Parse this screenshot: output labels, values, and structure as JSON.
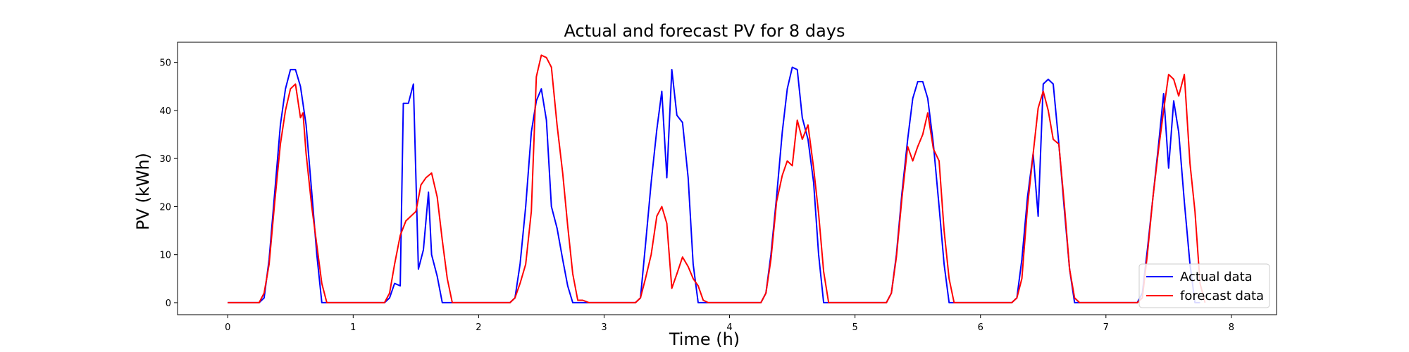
{
  "chart_data": {
    "type": "line",
    "title": "Actual and forecast PV for 8 days",
    "xlabel": "Time (h)",
    "ylabel": "PV (kWh)",
    "xlim": [
      -0.4,
      8.36
    ],
    "ylim": [
      -2.5,
      54.2
    ],
    "xticks": [
      0,
      1,
      2,
      3,
      4,
      5,
      6,
      7,
      8
    ],
    "yticks": [
      0,
      10,
      20,
      30,
      40,
      50
    ],
    "grid": false,
    "legend_position": "lower-right",
    "series": [
      {
        "name": "Actual data",
        "color": "#0000ff",
        "points": [
          [
            0.0,
            0
          ],
          [
            0.25,
            0
          ],
          [
            0.29,
            1
          ],
          [
            0.33,
            9
          ],
          [
            0.375,
            23
          ],
          [
            0.42,
            37
          ],
          [
            0.46,
            44.5
          ],
          [
            0.5,
            48.5
          ],
          [
            0.54,
            48.5
          ],
          [
            0.58,
            45
          ],
          [
            0.625,
            37
          ],
          [
            0.67,
            23
          ],
          [
            0.71,
            10
          ],
          [
            0.75,
            0
          ],
          [
            1.0,
            0
          ],
          [
            1.25,
            0
          ],
          [
            1.29,
            1
          ],
          [
            1.33,
            4
          ],
          [
            1.375,
            3.5
          ],
          [
            1.4,
            41.5
          ],
          [
            1.44,
            41.5
          ],
          [
            1.48,
            45.5
          ],
          [
            1.52,
            7
          ],
          [
            1.56,
            11
          ],
          [
            1.6,
            23
          ],
          [
            1.625,
            10
          ],
          [
            1.67,
            5.5
          ],
          [
            1.71,
            0
          ],
          [
            2.0,
            0
          ],
          [
            2.25,
            0
          ],
          [
            2.29,
            1
          ],
          [
            2.33,
            8
          ],
          [
            2.375,
            20
          ],
          [
            2.42,
            35.5
          ],
          [
            2.46,
            42
          ],
          [
            2.5,
            44.5
          ],
          [
            2.54,
            38
          ],
          [
            2.58,
            20
          ],
          [
            2.625,
            15.5
          ],
          [
            2.67,
            9
          ],
          [
            2.71,
            3.5
          ],
          [
            2.75,
            0
          ],
          [
            3.0,
            0
          ],
          [
            3.25,
            0
          ],
          [
            3.29,
            1
          ],
          [
            3.33,
            12
          ],
          [
            3.375,
            25
          ],
          [
            3.42,
            36
          ],
          [
            3.46,
            44
          ],
          [
            3.5,
            26
          ],
          [
            3.54,
            48.5
          ],
          [
            3.58,
            39
          ],
          [
            3.625,
            37.5
          ],
          [
            3.67,
            26
          ],
          [
            3.71,
            8
          ],
          [
            3.75,
            0
          ],
          [
            4.0,
            0
          ],
          [
            4.25,
            0
          ],
          [
            4.29,
            2
          ],
          [
            4.33,
            10
          ],
          [
            4.375,
            22
          ],
          [
            4.42,
            35.5
          ],
          [
            4.46,
            44.5
          ],
          [
            4.5,
            49
          ],
          [
            4.54,
            48.5
          ],
          [
            4.58,
            38.5
          ],
          [
            4.625,
            34
          ],
          [
            4.67,
            25
          ],
          [
            4.71,
            10
          ],
          [
            4.75,
            0
          ],
          [
            5.0,
            0
          ],
          [
            5.25,
            0
          ],
          [
            5.29,
            2
          ],
          [
            5.33,
            10
          ],
          [
            5.375,
            23
          ],
          [
            5.42,
            34
          ],
          [
            5.46,
            42.5
          ],
          [
            5.5,
            46
          ],
          [
            5.54,
            46
          ],
          [
            5.58,
            42.5
          ],
          [
            5.625,
            33
          ],
          [
            5.67,
            20
          ],
          [
            5.71,
            8
          ],
          [
            5.75,
            0
          ],
          [
            6.0,
            0
          ],
          [
            6.25,
            0
          ],
          [
            6.29,
            1
          ],
          [
            6.33,
            9
          ],
          [
            6.375,
            22
          ],
          [
            6.42,
            31
          ],
          [
            6.46,
            18
          ],
          [
            6.5,
            45.5
          ],
          [
            6.54,
            46.5
          ],
          [
            6.58,
            45.5
          ],
          [
            6.625,
            33
          ],
          [
            6.67,
            19
          ],
          [
            6.71,
            7
          ],
          [
            6.75,
            0
          ],
          [
            7.0,
            0
          ],
          [
            7.25,
            0
          ],
          [
            7.29,
            2
          ],
          [
            7.33,
            11
          ],
          [
            7.375,
            22
          ],
          [
            7.42,
            33
          ],
          [
            7.46,
            43.5
          ],
          [
            7.5,
            28
          ],
          [
            7.54,
            42
          ],
          [
            7.58,
            35.5
          ],
          [
            7.625,
            21
          ],
          [
            7.67,
            8
          ],
          [
            7.71,
            0
          ],
          [
            7.75,
            0
          ]
        ]
      },
      {
        "name": "forecast data",
        "color": "#ff0000",
        "points": [
          [
            0.0,
            0
          ],
          [
            0.25,
            0
          ],
          [
            0.29,
            2
          ],
          [
            0.33,
            8
          ],
          [
            0.375,
            21
          ],
          [
            0.42,
            33
          ],
          [
            0.46,
            40
          ],
          [
            0.5,
            44.5
          ],
          [
            0.54,
            45.5
          ],
          [
            0.58,
            38.5
          ],
          [
            0.6,
            39.5
          ],
          [
            0.625,
            31
          ],
          [
            0.67,
            20
          ],
          [
            0.71,
            12
          ],
          [
            0.75,
            4
          ],
          [
            0.79,
            0
          ],
          [
            1.0,
            0
          ],
          [
            1.25,
            0
          ],
          [
            1.29,
            2
          ],
          [
            1.33,
            8
          ],
          [
            1.375,
            14
          ],
          [
            1.42,
            17
          ],
          [
            1.46,
            18
          ],
          [
            1.5,
            19
          ],
          [
            1.54,
            24.5
          ],
          [
            1.58,
            26
          ],
          [
            1.625,
            27
          ],
          [
            1.67,
            22
          ],
          [
            1.71,
            13
          ],
          [
            1.75,
            5
          ],
          [
            1.79,
            0
          ],
          [
            2.0,
            0
          ],
          [
            2.25,
            0
          ],
          [
            2.29,
            1
          ],
          [
            2.33,
            4
          ],
          [
            2.375,
            8
          ],
          [
            2.42,
            19
          ],
          [
            2.46,
            47
          ],
          [
            2.5,
            51.5
          ],
          [
            2.54,
            51
          ],
          [
            2.58,
            49
          ],
          [
            2.625,
            37
          ],
          [
            2.67,
            27
          ],
          [
            2.71,
            16
          ],
          [
            2.75,
            6
          ],
          [
            2.79,
            0.5
          ],
          [
            2.83,
            0.5
          ],
          [
            2.88,
            0
          ],
          [
            3.0,
            0
          ],
          [
            3.25,
            0
          ],
          [
            3.29,
            1
          ],
          [
            3.33,
            5
          ],
          [
            3.375,
            10
          ],
          [
            3.42,
            18
          ],
          [
            3.46,
            20
          ],
          [
            3.5,
            16.5
          ],
          [
            3.54,
            3
          ],
          [
            3.58,
            6
          ],
          [
            3.625,
            9.5
          ],
          [
            3.67,
            7.5
          ],
          [
            3.71,
            5
          ],
          [
            3.75,
            3.5
          ],
          [
            3.79,
            0.5
          ],
          [
            3.83,
            0
          ],
          [
            4.0,
            0
          ],
          [
            4.25,
            0
          ],
          [
            4.29,
            2
          ],
          [
            4.33,
            9
          ],
          [
            4.375,
            21
          ],
          [
            4.42,
            26.5
          ],
          [
            4.46,
            29.5
          ],
          [
            4.5,
            28.5
          ],
          [
            4.54,
            38
          ],
          [
            4.58,
            34
          ],
          [
            4.625,
            37
          ],
          [
            4.67,
            28
          ],
          [
            4.71,
            18.5
          ],
          [
            4.75,
            6.5
          ],
          [
            4.79,
            0
          ],
          [
            5.0,
            0
          ],
          [
            5.25,
            0
          ],
          [
            5.29,
            2
          ],
          [
            5.33,
            9.5
          ],
          [
            5.375,
            22
          ],
          [
            5.42,
            32.5
          ],
          [
            5.46,
            29.5
          ],
          [
            5.5,
            32.5
          ],
          [
            5.54,
            35
          ],
          [
            5.58,
            39.5
          ],
          [
            5.625,
            32
          ],
          [
            5.67,
            29.5
          ],
          [
            5.71,
            15
          ],
          [
            5.75,
            5
          ],
          [
            5.79,
            0
          ],
          [
            6.0,
            0
          ],
          [
            6.25,
            0
          ],
          [
            6.29,
            1
          ],
          [
            6.33,
            5
          ],
          [
            6.375,
            20
          ],
          [
            6.42,
            31
          ],
          [
            6.46,
            40.5
          ],
          [
            6.5,
            44
          ],
          [
            6.54,
            40
          ],
          [
            6.58,
            34
          ],
          [
            6.625,
            33
          ],
          [
            6.67,
            20
          ],
          [
            6.71,
            7
          ],
          [
            6.75,
            1
          ],
          [
            6.79,
            0
          ],
          [
            7.0,
            0
          ],
          [
            7.25,
            0
          ],
          [
            7.29,
            1
          ],
          [
            7.33,
            10
          ],
          [
            7.375,
            22
          ],
          [
            7.42,
            32
          ],
          [
            7.46,
            40
          ],
          [
            7.5,
            47.5
          ],
          [
            7.54,
            46.5
          ],
          [
            7.58,
            43
          ],
          [
            7.625,
            47.5
          ],
          [
            7.67,
            29
          ],
          [
            7.71,
            19
          ],
          [
            7.75,
            4
          ],
          [
            7.79,
            0
          ]
        ]
      }
    ]
  }
}
